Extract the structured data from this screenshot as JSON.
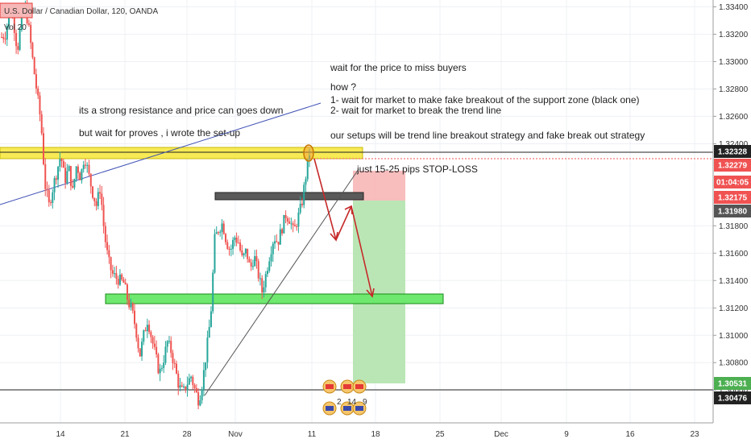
{
  "header": {
    "symbol": "U.S. Dollar / Canadian Dollar, 120, OANDA",
    "volume": "Vol 20"
  },
  "notes": {
    "left_1": "its a strong resistance and price can goes down",
    "left_2": "but wait for proves , i wrote the set-up",
    "right_1": "wait for the price to miss buyers",
    "right_2": "how ?",
    "right_3": "1- wait for market to make fake breakout of the support zone (black one)",
    "right_4": "2- wait for market to break the trend line",
    "right_5": "our setups will be trend line breakout strategy and fake break out strategy",
    "stop_loss": "just 15-25 pips STOP-LOSS"
  },
  "events": [
    "2",
    "14",
    "9"
  ],
  "colors": {
    "up": "#26a69a",
    "down": "#ef5350",
    "resistance_zone": "#f7e94b",
    "support_zone": "#6ee86e",
    "fake_zone": "#555555",
    "stop_zone": "#f7b6b6",
    "target_zone": "#b2e3ae",
    "arrow": "#c62828",
    "trendline": "#3f51b5",
    "uptrend": "#555555",
    "tag_dark": "#222222",
    "tag_red": "#f05252",
    "tag_green": "#4caf50",
    "tag_gray": "#555555"
  },
  "chart_data": {
    "type": "candlestick",
    "instrument": "U.S. Dollar / Canadian Dollar",
    "timeframe": "120",
    "source": "OANDA",
    "ylim": [
      1.3036,
      1.3345
    ],
    "x_tick_labels": [
      "14",
      "21",
      "28",
      "Nov",
      "11",
      "18",
      "25",
      "Dec",
      "9",
      "16",
      "23"
    ],
    "y_tick_labels": [
      "1.33400",
      "1.33200",
      "1.33000",
      "1.32800",
      "1.32600",
      "1.32400",
      "1.31800",
      "1.31600",
      "1.31400",
      "1.31200",
      "1.31000",
      "1.30800",
      "1.30600"
    ],
    "y_ticks": [
      1.334,
      1.332,
      1.33,
      1.328,
      1.326,
      1.324,
      1.318,
      1.316,
      1.314,
      1.312,
      1.31,
      1.308,
      1.306
    ],
    "price_tags": [
      {
        "label": "1.32328",
        "value": 1.32328,
        "style": "dark"
      },
      {
        "label": "1.32279",
        "value": 1.32279,
        "style": "red"
      },
      {
        "label": "01:04:05",
        "value": 1.3212,
        "style": "red"
      },
      {
        "label": "1.32175",
        "value": 1.32175,
        "style": "red"
      },
      {
        "label": "1.31980",
        "value": 1.3198,
        "style": "gray"
      },
      {
        "label": "1.30531",
        "value": 1.30531,
        "style": "green"
      },
      {
        "label": "1.30476",
        "value": 1.30476,
        "style": "dark"
      }
    ],
    "waypoints": [
      [
        1.3318,
        1.332,
        1.3338,
        1.333,
        1.3308,
        1.333,
        1.334,
        1.3322,
        1.3298,
        1.3276,
        1.3255,
        1.321,
        1.3195,
        1.3208,
        1.322,
        1.3232,
        1.3213,
        1.3222,
        1.3205,
        1.3225,
        1.3215,
        1.3232,
        1.3218,
        1.3205,
        1.3195,
        1.3208,
        1.3175,
        1.3155,
        1.3145,
        1.3142,
        1.314,
        1.3138,
        1.3125,
        1.3118,
        1.3105,
        1.3085,
        1.31,
        1.3112,
        1.3098,
        1.3085,
        1.3072,
        1.3082,
        1.3095,
        1.3088,
        1.3075,
        1.3062,
        1.3058,
        1.3065,
        1.307,
        1.306,
        1.3052,
        1.3068,
        1.309,
        1.3115,
        1.317,
        1.3178,
        1.3182,
        1.3168,
        1.3162,
        1.3172,
        1.3168,
        1.3155,
        1.3162,
        1.3148,
        1.3158,
        1.3145,
        1.3132,
        1.3145,
        1.316,
        1.3172,
        1.3168,
        1.3178,
        1.3188,
        1.3185,
        1.3175,
        1.3185,
        1.3195,
        1.3215,
        1.3233
      ]
    ],
    "zones": [
      {
        "name": "resistance",
        "from": 1.3223,
        "to": 1.3236
      },
      {
        "name": "fake_breakout",
        "from": 1.3193,
        "to": 1.3201
      },
      {
        "name": "support",
        "from": 1.31158,
        "to": 1.31255
      },
      {
        "name": "stop_loss",
        "from": 1.3198,
        "to": 1.3219
      },
      {
        "name": "take_profit",
        "from": 1.30531,
        "to": 1.3198
      }
    ],
    "horizontal_lines": [
      1.32328,
      1.30476
    ],
    "price_path": [
      [
        1.3233,
        1.3178,
        1.3198,
        1.3126
      ]
    ]
  }
}
